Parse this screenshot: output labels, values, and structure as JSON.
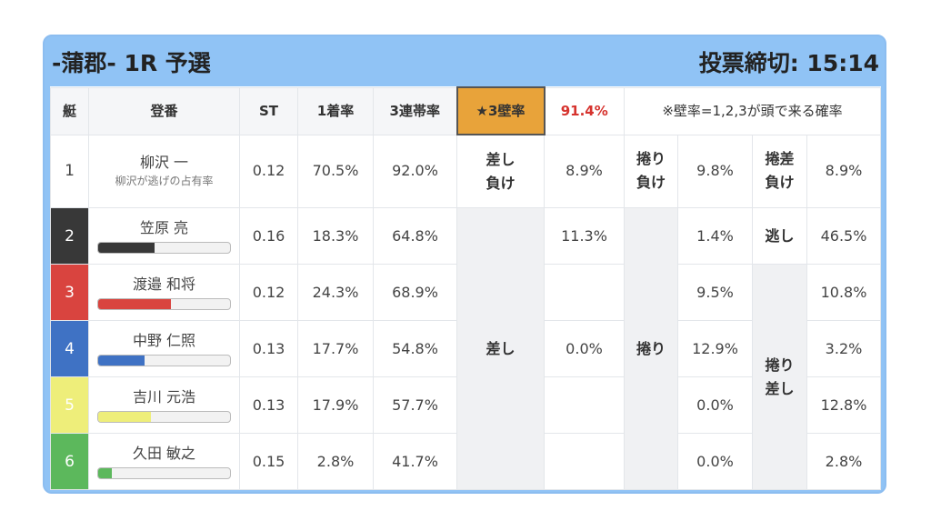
{
  "header": {
    "title": "-蒲郡- 1R 予選",
    "deadline": "投票締切: 15:14"
  },
  "table": {
    "columns": [
      "艇",
      "登番",
      "ST",
      "1着率",
      "3連帯率",
      "★3壁率",
      "91.4%",
      "※壁率=1,2,3が頭で来る確率"
    ],
    "groups": {
      "sashi_lose": "差し\n負け",
      "sashi": "差し",
      "makuri_lose": "捲り\n負け",
      "makuri": "捲り",
      "makurizashi_lose": "捲差\n負け",
      "nige": "逃し",
      "makurizashi": "捲り\n差し"
    },
    "rows": [
      {
        "boat": "1",
        "name": "柳沢 一",
        "note": "柳沢が逃げの占有率",
        "st": "0.12",
        "win": "70.5%",
        "top3": "92.0%",
        "sashi": "8.9%",
        "makuri": "9.8%",
        "makurizashi": "8.9%"
      },
      {
        "boat": "2",
        "name": "笠原 亮",
        "bar": 43,
        "st": "0.16",
        "win": "18.3%",
        "top3": "64.8%",
        "sashi": "11.3%",
        "makuri": "1.4%",
        "makurizashi": "46.5%"
      },
      {
        "boat": "3",
        "name": "渡邉 和将",
        "bar": 55,
        "st": "0.12",
        "win": "24.3%",
        "top3": "68.9%",
        "makuri": "9.5%",
        "makurizashi": "10.8%"
      },
      {
        "boat": "4",
        "name": "中野 仁照",
        "bar": 35,
        "st": "0.13",
        "win": "17.7%",
        "top3": "54.8%",
        "sashi": "0.0%",
        "makuri": "12.9%",
        "makurizashi": "3.2%"
      },
      {
        "boat": "5",
        "name": "吉川 元浩",
        "bar": 40,
        "st": "0.13",
        "win": "17.9%",
        "top3": "57.7%",
        "makuri": "0.0%",
        "makurizashi": "12.8%"
      },
      {
        "boat": "6",
        "name": "久田 敏之",
        "bar": 10,
        "st": "0.15",
        "win": "2.8%",
        "top3": "41.7%",
        "makuri": "0.0%",
        "makurizashi": "2.8%"
      }
    ]
  }
}
